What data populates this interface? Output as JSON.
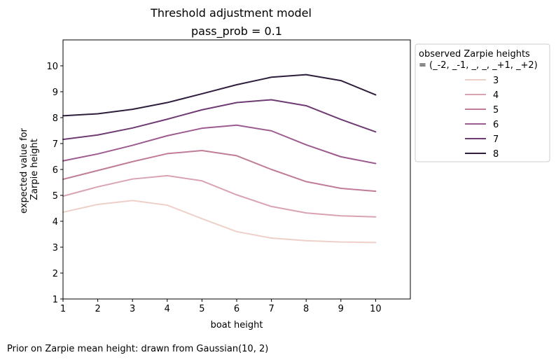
{
  "figure": {
    "title": "Threshold adjustment model",
    "footnote": "Prior on Zarpie mean height: drawn from Gaussian(10, 2)"
  },
  "chart_data": {
    "type": "line",
    "title": "pass_prob = 0.1",
    "xlabel": "boat height",
    "ylabel_lines": [
      "expected value for",
      "Zarpie height"
    ],
    "x": [
      1,
      2,
      3,
      4,
      5,
      6,
      7,
      8,
      9,
      10
    ],
    "xticks": [
      1,
      2,
      3,
      4,
      5,
      6,
      7,
      8,
      9,
      10
    ],
    "yticks": [
      1,
      2,
      3,
      4,
      5,
      6,
      7,
      8,
      9,
      10
    ],
    "xlim": [
      1,
      11
    ],
    "ylim": [
      1,
      11
    ],
    "grid": false,
    "legend": {
      "placement": "outside-right",
      "title_lines": [
        "observed Zarpie heights",
        "= (_-2, _-1, _, _, _+1, _+2)"
      ]
    },
    "series": [
      {
        "name": "3",
        "color": "#eed0c8",
        "values": [
          4.35,
          4.65,
          4.8,
          4.62,
          4.1,
          3.6,
          3.35,
          3.25,
          3.2,
          3.18
        ]
      },
      {
        "name": "4",
        "color": "#d9a3b1",
        "values": [
          4.97,
          5.33,
          5.63,
          5.76,
          5.56,
          5.02,
          4.57,
          4.32,
          4.21,
          4.17
        ]
      },
      {
        "name": "5",
        "color": "#c07c98",
        "values": [
          5.62,
          5.96,
          6.3,
          6.61,
          6.73,
          6.53,
          6.0,
          5.53,
          5.27,
          5.16
        ]
      },
      {
        "name": "6",
        "color": "#9d5b8f",
        "values": [
          6.33,
          6.6,
          6.93,
          7.3,
          7.59,
          7.71,
          7.49,
          6.95,
          6.49,
          6.23
        ]
      },
      {
        "name": "7",
        "color": "#6e3b72",
        "values": [
          7.16,
          7.33,
          7.6,
          7.94,
          8.3,
          8.58,
          8.69,
          8.46,
          7.93,
          7.45
        ]
      },
      {
        "name": "8",
        "color": "#2e1e3b",
        "values": [
          8.07,
          8.15,
          8.32,
          8.58,
          8.92,
          9.27,
          9.56,
          9.66,
          9.43,
          8.88
        ]
      }
    ]
  }
}
